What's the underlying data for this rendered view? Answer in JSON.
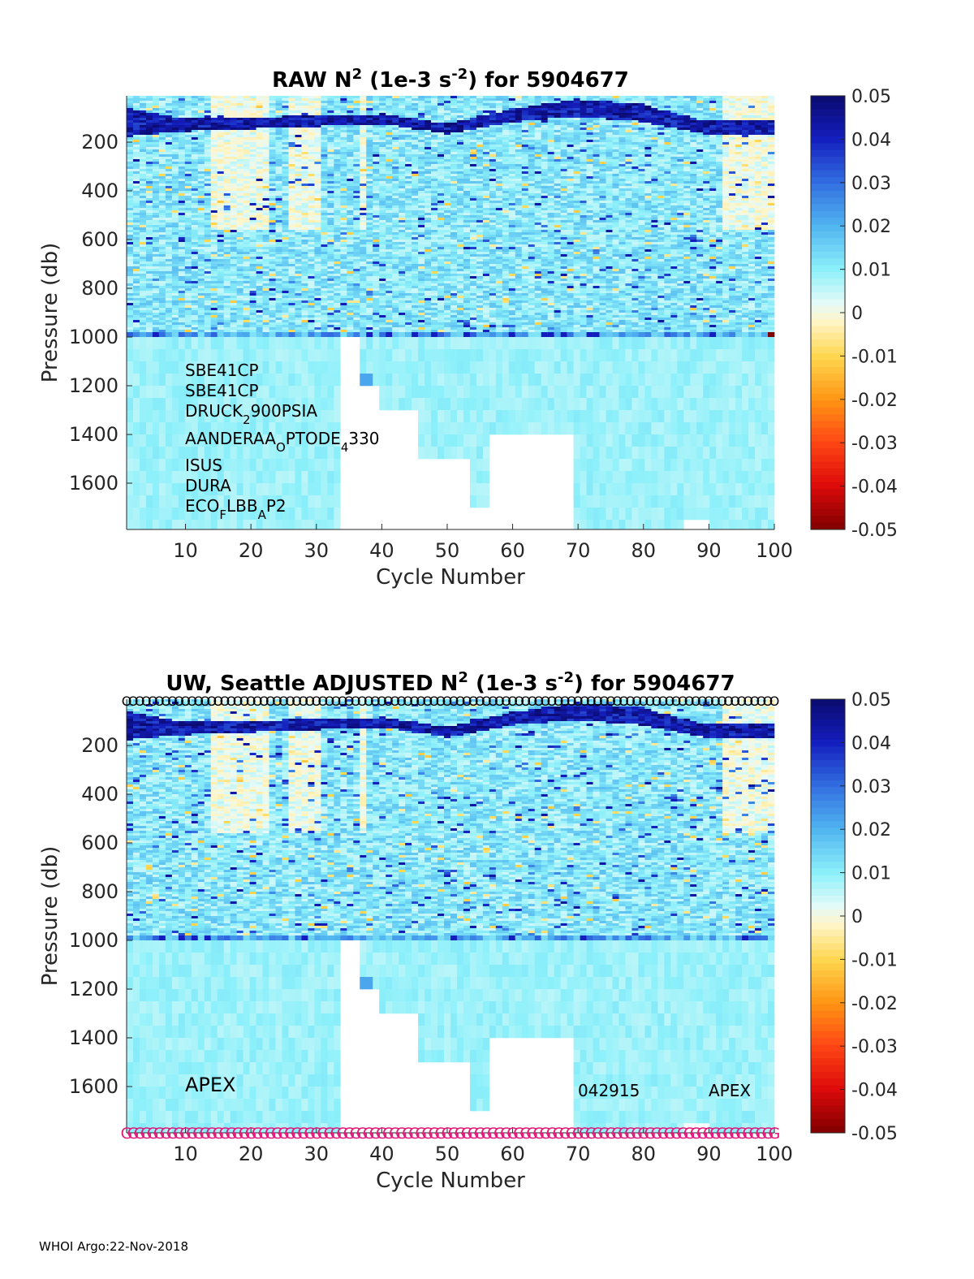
{
  "footer": "WHOI Argo:22-Nov-2018",
  "chart_data": [
    {
      "type": "heatmap",
      "title_parts": [
        "RAW N",
        "2",
        " (1e-3 s",
        "-2",
        ") for 5904677"
      ],
      "xlabel": "Cycle Number",
      "ylabel": "Pressure (db)",
      "xlim": [
        1,
        100
      ],
      "ylim": [
        1790,
        10
      ],
      "y_reversed": true,
      "xticks": [
        10,
        20,
        30,
        40,
        50,
        60,
        70,
        80,
        90,
        100
      ],
      "yticks": [
        200,
        400,
        600,
        800,
        1000,
        1200,
        1400,
        1600
      ],
      "colorbar": {
        "ticks": [
          0.05,
          0.04,
          0.03,
          0.02,
          0.01,
          0,
          -0.01,
          -0.02,
          -0.03,
          -0.04,
          -0.05
        ],
        "range": [
          -0.05,
          0.05
        ],
        "colormap": "blue-cyan-white-yellow-red"
      },
      "color_range": [
        -0.05,
        0.05
      ],
      "surface_stratified_band": [
        {
          "cycle": 1,
          "depth_top": 60,
          "depth_bottom": 170
        },
        {
          "cycle": 10,
          "depth_top": 100,
          "depth_bottom": 150
        },
        {
          "cycle": 40,
          "depth_top": 80,
          "depth_bottom": 120
        },
        {
          "cycle": 50,
          "depth_top": 120,
          "depth_bottom": 160
        },
        {
          "cycle": 60,
          "depth_top": 60,
          "depth_bottom": 110
        },
        {
          "cycle": 70,
          "depth_top": 20,
          "depth_bottom": 90
        },
        {
          "cycle": 80,
          "depth_top": 40,
          "depth_bottom": 110
        },
        {
          "cycle": 90,
          "depth_top": 110,
          "depth_bottom": 160
        }
      ],
      "max_pressure_by_cycle_group": [
        {
          "cycles": [
            1,
            33
          ],
          "max_pressure": 1790
        },
        {
          "cycles": [
            34,
            36
          ],
          "max_pressure": 1000
        },
        {
          "cycles": [
            37,
            39
          ],
          "max_pressure": 1200
        },
        {
          "cycles": [
            40,
            45
          ],
          "max_pressure": 1300
        },
        {
          "cycles": [
            46,
            53
          ],
          "max_pressure": 1500
        },
        {
          "cycles": [
            54,
            56
          ],
          "max_pressure": 1700
        },
        {
          "cycles": [
            57,
            69
          ],
          "max_pressure": 1400
        },
        {
          "cycles": [
            70,
            86
          ],
          "max_pressure": 1790
        },
        {
          "cycles": [
            87,
            90
          ],
          "max_pressure": 1750
        },
        {
          "cycles": [
            91,
            100
          ],
          "max_pressure": 1790
        }
      ],
      "annotations": [
        [
          "SBE41CP"
        ],
        [
          "SBE41CP"
        ],
        [
          "DRUCK",
          "2",
          "900PSIA"
        ],
        [
          "AANDERAA",
          "O",
          "PTODE",
          "4",
          "330"
        ],
        [
          "ISUS"
        ],
        [
          "DURA"
        ],
        [
          "ECO",
          "F",
          "LBB",
          "A",
          "P2"
        ]
      ]
    },
    {
      "type": "heatmap",
      "title_parts": [
        "UW, Seattle  ADJUSTED N",
        "2",
        " (1e-3 s",
        "-2",
        ") for 5904677"
      ],
      "xlabel": "Cycle Number",
      "ylabel": "Pressure (db)",
      "xlim": [
        1,
        100
      ],
      "ylim": [
        1790,
        10
      ],
      "y_reversed": true,
      "xticks": [
        10,
        20,
        30,
        40,
        50,
        60,
        70,
        80,
        90,
        100
      ],
      "yticks": [
        200,
        400,
        600,
        800,
        1000,
        1200,
        1400,
        1600
      ],
      "colorbar": {
        "ticks": [
          0.05,
          0.04,
          0.03,
          0.02,
          0.01,
          0,
          -0.01,
          -0.02,
          -0.03,
          -0.04,
          -0.05
        ],
        "range": [
          -0.05,
          0.05
        ],
        "colormap": "blue-cyan-white-yellow-red"
      },
      "color_range": [
        -0.05,
        0.05
      ],
      "qc_top_marker": "O",
      "qc_bottom_marker": "G",
      "annotations": [
        [
          "APEX"
        ],
        [
          "042915"
        ],
        [
          "APEX"
        ]
      ]
    }
  ]
}
